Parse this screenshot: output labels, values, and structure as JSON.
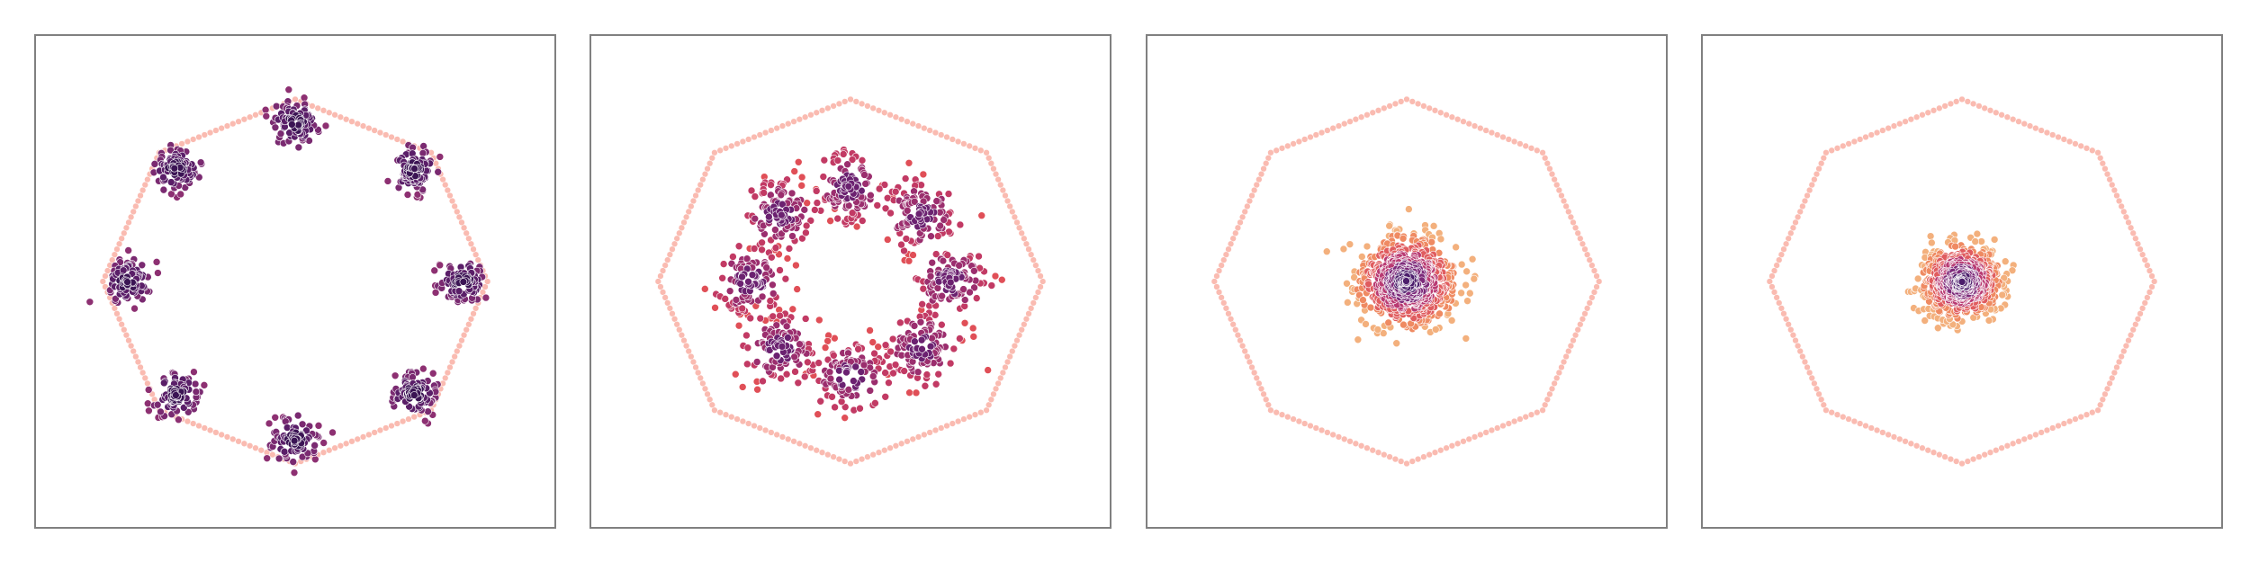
{
  "chart_data": [
    {
      "type": "scatter",
      "title": "",
      "xlabel": "",
      "ylabel": "",
      "xlim": [
        -1.55,
        1.55
      ],
      "ylim": [
        -1.55,
        1.55
      ],
      "grid": false,
      "legend": "none",
      "boundary": {
        "shape": "octagon",
        "radius": 1.15,
        "vertex_angle_deg": 90,
        "marker_color": "#f8a497"
      },
      "clusters": [
        {
          "cx": 0.0,
          "cy": 1.0,
          "sd": 0.07,
          "n": 85
        },
        {
          "cx": 0.71,
          "cy": 0.71,
          "sd": 0.07,
          "n": 85
        },
        {
          "cx": 1.0,
          "cy": 0.0,
          "sd": 0.07,
          "n": 85
        },
        {
          "cx": 0.71,
          "cy": -0.71,
          "sd": 0.07,
          "n": 85
        },
        {
          "cx": 0.0,
          "cy": -1.0,
          "sd": 0.07,
          "n": 85
        },
        {
          "cx": -0.71,
          "cy": -0.71,
          "sd": 0.07,
          "n": 85
        },
        {
          "cx": -1.0,
          "cy": 0.0,
          "sd": 0.07,
          "n": 85
        },
        {
          "cx": -0.71,
          "cy": 0.71,
          "sd": 0.07,
          "n": 85
        }
      ],
      "point_colors": [
        "#3b1454",
        "#5a1e68",
        "#7a2a71",
        "#8d3072"
      ],
      "point_edge_color": "#ffffff"
    },
    {
      "type": "scatter",
      "title": "",
      "xlabel": "",
      "ylabel": "",
      "xlim": [
        -1.55,
        1.55
      ],
      "ylim": [
        -1.55,
        1.55
      ],
      "grid": false,
      "legend": "none",
      "boundary": {
        "shape": "octagon",
        "radius": 1.15,
        "vertex_angle_deg": 90,
        "marker_color": "#f8a497"
      },
      "clusters": [
        {
          "cx": 0.0,
          "cy": 0.6,
          "sd": 0.11,
          "n": 110
        },
        {
          "cx": 0.42,
          "cy": 0.42,
          "sd": 0.11,
          "n": 110
        },
        {
          "cx": 0.6,
          "cy": 0.0,
          "sd": 0.11,
          "n": 110
        },
        {
          "cx": 0.42,
          "cy": -0.42,
          "sd": 0.11,
          "n": 110
        },
        {
          "cx": 0.0,
          "cy": -0.6,
          "sd": 0.11,
          "n": 110
        },
        {
          "cx": -0.42,
          "cy": -0.42,
          "sd": 0.11,
          "n": 110
        },
        {
          "cx": -0.6,
          "cy": 0.0,
          "sd": 0.11,
          "n": 110
        },
        {
          "cx": -0.42,
          "cy": 0.42,
          "sd": 0.11,
          "n": 110
        }
      ],
      "point_colors": [
        "#6b2170",
        "#9b2e6e",
        "#c23a64",
        "#e04f57"
      ],
      "point_edge_color": "#ffffff"
    },
    {
      "type": "scatter",
      "title": "",
      "xlabel": "",
      "ylabel": "",
      "xlim": [
        -1.55,
        1.55
      ],
      "ylim": [
        -1.55,
        1.55
      ],
      "grid": false,
      "legend": "none",
      "boundary": {
        "shape": "octagon",
        "radius": 1.15,
        "vertex_angle_deg": 90,
        "marker_color": "#f8a497"
      },
      "clusters": [
        {
          "cx": 0.0,
          "cy": 0.0,
          "sd": 0.14,
          "n": 700
        }
      ],
      "point_colors": [
        "#f3b07d",
        "#ef8a62",
        "#e05c5f",
        "#b93a72",
        "#7d2a7a",
        "#4b1d6b"
      ],
      "point_edge_color": "#ffffff"
    },
    {
      "type": "scatter",
      "title": "",
      "xlabel": "",
      "ylabel": "",
      "xlim": [
        -1.55,
        1.55
      ],
      "ylim": [
        -1.55,
        1.55
      ],
      "grid": false,
      "legend": "none",
      "boundary": {
        "shape": "octagon",
        "radius": 1.15,
        "vertex_angle_deg": 90,
        "marker_color": "#f8a497"
      },
      "clusters": [
        {
          "cx": 0.0,
          "cy": 0.0,
          "sd": 0.11,
          "n": 650
        }
      ],
      "point_colors": [
        "#f3b07d",
        "#ef8a62",
        "#e05c5f",
        "#b93a72",
        "#7d2a7a",
        "#4b1d6b"
      ],
      "point_edge_color": "#ffffff"
    }
  ]
}
